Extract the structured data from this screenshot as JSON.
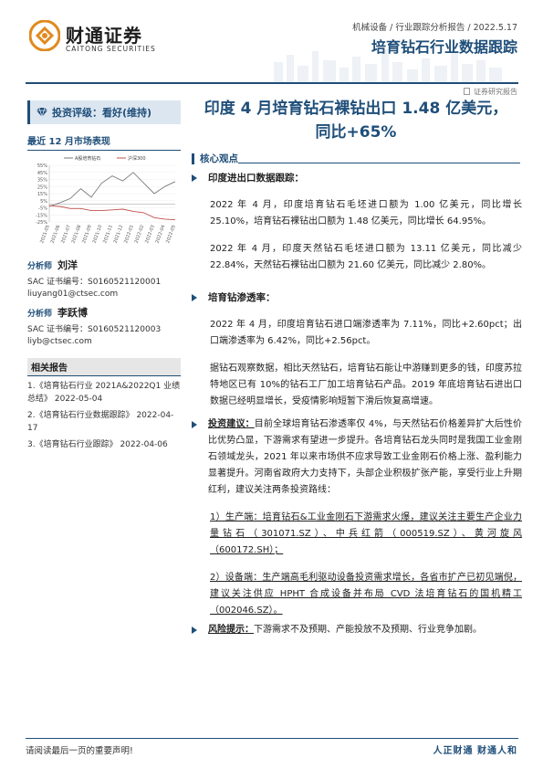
{
  "header": {
    "logo_cn": "财通证券",
    "logo_en": "CAITONG SECURITIES",
    "meta": "机械设备 / 行业跟踪分析报告 / 2022.5.17",
    "title": "培育钻石行业数据跟踪",
    "sub": "证券研究报告",
    "brand_color": "#1f4e79"
  },
  "sidebar": {
    "rating": "投资评级：看好(维持)",
    "perf_title": "最近 12 月市场表现",
    "analysts": [
      {
        "label": "分析师",
        "name": "刘洋",
        "sac": "SAC 证书编号：S0160521120001",
        "email": "liuyang01@ctsec.com"
      },
      {
        "label": "分析师",
        "name": "李跃博",
        "sac": "SAC 证书编号：S0160521120003",
        "email": "liyb@ctsec.com"
      }
    ],
    "related_title": "相关报告",
    "related": [
      "1.《培育钻石行业 2021A&2022Q1 业绩总结》 2022-05-04",
      "2.《培育钻石行业数据跟踪》 2022-04-17",
      "3.《培育钻石行业跟踪》 2022-04-06"
    ]
  },
  "chart_data": {
    "type": "line",
    "title": "",
    "xlabel": "",
    "ylabel": "",
    "x": [
      "2021-05",
      "2021-06",
      "2021-07",
      "2021-08",
      "2021-09",
      "2021-10",
      "2021-11",
      "2021-12",
      "2022-01",
      "2022-02",
      "2022-03",
      "2022-04",
      "2022-05"
    ],
    "yticks": [
      "55%",
      "45%",
      "35%",
      "25%",
      "15%",
      "5%",
      "-5%",
      "-15%",
      "-25%"
    ],
    "ylim": [
      -25,
      55
    ],
    "legend_position": "top",
    "series": [
      {
        "name": "A股培育钻石",
        "color": "#7a7a7a",
        "values": [
          -3,
          2,
          8,
          22,
          10,
          30,
          40,
          33,
          45,
          30,
          15,
          25,
          32
        ]
      },
      {
        "name": "沪深300",
        "color": "#c0504d",
        "values": [
          -2,
          -3,
          -6,
          -6,
          -9,
          -9,
          -8,
          -7,
          -10,
          -12,
          -19,
          -21,
          -22
        ]
      }
    ]
  },
  "main": {
    "title_line1": "印度 4 月培育钻石裸钻出口 1.48 亿美元，",
    "title_line2": "同比+65%",
    "core_label": "核心观点",
    "sec1_head": "印度进出口数据跟踪：",
    "sec1_p1": "2022 年 4 月，印度培育钻石毛坯进口额为 1.00 亿美元，同比增长 25.10%，培育钻石裸钻出口额为 1.48 亿美元，同比增长 64.95%。",
    "sec1_p2": "2022 年 4 月，印度天然钻石毛坯进口额为 13.11 亿美元，同比减少 22.84%，天然钻石裸钻出口额为 21.60 亿美元，同比减少 2.80%。",
    "sec2_head": "培育钻渗透率：",
    "sec2_p1": "2022 年 4 月，印度培育钻石进口端渗透率为 7.11%，同比+2.60pct；出口端渗透率为 6.42%，同比+2.56pct。",
    "sec2_p2": "据钻石观察数据，相比天然钻石，培育钻石能让中游赚到更多的钱，印度苏拉特地区已有 10%的钻石工厂加工培育钻石产品。2019 年底培育钻石进出口数据已经明显增长，受疫情影响短暂下滑后恢复高增速。",
    "sec3_head": "投资建议：",
    "sec3_p1": "目前全球培育钻石渗透率仅 4%，与天然钻石价格差异扩大后性价比优势凸显，下游需求有望进一步提升。各培育钻石龙头同时是我国工业金刚石领域龙头，2021 年以来市场供不应求导致工业金刚石价格上涨、盈利能力显著提升。河南省政府大力支持下，头部企业积极扩张产能，享受行业上升期红利，建议关注两条投资路线：",
    "sec3_p2": "1）生产端：培育钻石&工业金刚石下游需求火爆，建议关注主要生产企业力量钻石（301071.SZ）、中兵红箭（000519.SZ）、黄河旋风（600172.SH）；",
    "sec3_p3": "2）设备端：生产端高毛利驱动设备投资需求增长，各省市扩产已初见端倪，建议关注供应 HPHT 合成设备并布局 CVD 法培育钻石的国机精工（002046.SZ）。",
    "sec4_head": "风险提示：",
    "sec4_p1": "下游需求不及预期、产能投放不及预期、行业竞争加剧。"
  },
  "footer": {
    "left": "请阅读最后一页的重要声明!",
    "right": "人正财通  财通人和"
  }
}
